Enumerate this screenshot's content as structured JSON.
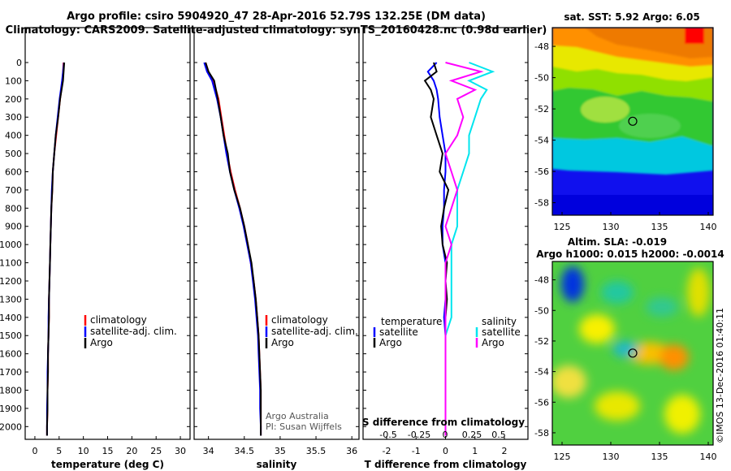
{
  "header": {
    "title_line1": "Argo profile: csiro 5904920_47 28-Apr-2016 52.79S 132.25E (DM data)",
    "title_line2": "Climatology: CARS2009. Satellite-adjusted climatology: synTS_20160428.nc (0.98d earlier)"
  },
  "colors": {
    "climatology": "#ff0000",
    "satellite": "#0000ff",
    "argo": "#000000",
    "s_satellite": "#00e5ee",
    "s_argo": "#ff00ff"
  },
  "chart_data": [
    {
      "type": "line",
      "id": "temperature",
      "xlabel": "temperature (deg C)",
      "ylabel": "",
      "xlim": [
        -2,
        32
      ],
      "ylim": [
        2070,
        0
      ],
      "xticks": [
        "0",
        "5",
        "10",
        "15",
        "20",
        "25",
        "30"
      ],
      "yticks": [
        "0",
        "100",
        "200",
        "300",
        "400",
        "500",
        "600",
        "700",
        "800",
        "900",
        "1000",
        "1100",
        "1200",
        "1300",
        "1400",
        "1500",
        "1600",
        "1700",
        "1800",
        "1900",
        "2000"
      ],
      "legend": [
        "climatology",
        "satellite-adj. clim.",
        "Argo"
      ],
      "legend_position": "lower-right",
      "depth": [
        0,
        100,
        200,
        300,
        400,
        500,
        600,
        700,
        800,
        900,
        1000,
        1100,
        1200,
        1300,
        1400,
        1500,
        1600,
        1700,
        1800,
        1900,
        2000,
        2050
      ],
      "series": [
        {
          "name": "climatology",
          "x": [
            5.9,
            5.7,
            5.2,
            4.8,
            4.4,
            4.0,
            3.7,
            3.6,
            3.4,
            3.3,
            3.2,
            3.1,
            3.0,
            2.9,
            2.9,
            2.8,
            2.7,
            2.7,
            2.6,
            2.6,
            2.5,
            2.5
          ]
        },
        {
          "name": "satellite-adj. clim.",
          "x": [
            6.0,
            5.6,
            5.1,
            4.7,
            4.3,
            4.0,
            3.7,
            3.5,
            3.4,
            3.3,
            3.2,
            3.1,
            3.0,
            2.9,
            2.8,
            2.8,
            2.7,
            2.6,
            2.6,
            2.5,
            2.5,
            2.5
          ]
        },
        {
          "name": "Argo",
          "x": [
            6.05,
            5.8,
            5.2,
            4.8,
            4.3,
            4.0,
            3.7,
            3.6,
            3.4,
            3.3,
            3.2,
            3.1,
            3.0,
            2.9,
            2.9,
            2.8,
            2.7,
            2.7,
            2.6,
            2.6,
            2.5,
            2.5
          ]
        }
      ]
    },
    {
      "type": "line",
      "id": "salinity",
      "xlabel": "salinity",
      "xlim": [
        33.8,
        36.1
      ],
      "ylim": [
        2070,
        0
      ],
      "xticks": [
        "34",
        "34.5",
        "35",
        "35.5",
        "36"
      ],
      "legend": [
        "climatology",
        "satellite-adj. clim.",
        "Argo"
      ],
      "legend_position": "lower-right",
      "annotation": [
        "Argo Australia",
        "PI: Susan Wijffels"
      ],
      "depth": [
        0,
        50,
        100,
        200,
        300,
        400,
        500,
        600,
        700,
        800,
        900,
        1000,
        1100,
        1200,
        1300,
        1400,
        1500,
        1600,
        1700,
        1800,
        1900,
        2000,
        2050
      ],
      "series": [
        {
          "name": "climatology",
          "x": [
            33.96,
            34.0,
            34.07,
            34.14,
            34.18,
            34.22,
            34.26,
            34.31,
            34.37,
            34.44,
            34.5,
            34.55,
            34.59,
            34.63,
            34.66,
            34.68,
            34.7,
            34.71,
            34.72,
            34.73,
            34.73,
            34.73,
            34.73
          ]
        },
        {
          "name": "satellite-adj. clim.",
          "x": [
            33.94,
            33.98,
            34.05,
            34.12,
            34.17,
            34.21,
            34.25,
            34.3,
            34.36,
            34.43,
            34.49,
            34.54,
            34.59,
            34.62,
            34.65,
            34.67,
            34.69,
            34.7,
            34.71,
            34.72,
            34.72,
            34.73,
            34.73
          ]
        },
        {
          "name": "Argo",
          "x": [
            33.96,
            34.0,
            34.08,
            34.13,
            34.17,
            34.21,
            34.27,
            34.3,
            34.36,
            34.44,
            34.5,
            34.55,
            34.6,
            34.63,
            34.66,
            34.68,
            34.7,
            34.71,
            34.72,
            34.73,
            34.73,
            34.73,
            34.73
          ]
        }
      ]
    },
    {
      "type": "line",
      "id": "difference",
      "xlabel": "T difference from climatology",
      "xlabel_top": "S difference from climatology",
      "xlim": [
        -2.8,
        2.8
      ],
      "ylim": [
        2070,
        0
      ],
      "xticks": [
        "-2",
        "-1",
        "0",
        "1",
        "2"
      ],
      "xticks_top": [
        "-0.5",
        "-0.25",
        "0",
        "0.25",
        "0.5"
      ],
      "legend_left": [
        "temperature",
        "satellite",
        "Argo"
      ],
      "legend_right": [
        "salinity",
        "satellite",
        "Argo"
      ],
      "depth": [
        0,
        50,
        100,
        150,
        200,
        300,
        400,
        500,
        600,
        700,
        800,
        900,
        1000,
        1100,
        1200,
        1300,
        1400,
        1500,
        1600,
        1700,
        1800,
        1900,
        2000,
        2050
      ],
      "series": [
        {
          "name": "T satellite",
          "x": [
            -0.3,
            -0.6,
            -0.4,
            -0.3,
            -0.25,
            -0.2,
            -0.1,
            0.0,
            0.0,
            -0.05,
            -0.05,
            -0.1,
            -0.1,
            0.0,
            0.0,
            0.0,
            -0.05,
            0.0,
            0.0,
            0.0,
            0.0,
            0.0,
            0.0,
            0.0
          ]
        },
        {
          "name": "T Argo",
          "x": [
            -0.4,
            -0.3,
            -0.7,
            -0.5,
            -0.4,
            -0.5,
            -0.3,
            -0.1,
            -0.2,
            0.1,
            -0.05,
            -0.15,
            -0.1,
            0.05,
            0.0,
            0.05,
            0.0,
            0.0,
            0.0,
            0.0,
            0.0,
            0.0,
            0.0,
            0.0
          ]
        },
        {
          "name": "S satellite",
          "x": [
            0.2,
            0.4,
            0.2,
            0.35,
            0.3,
            0.25,
            0.2,
            0.2,
            0.15,
            0.1,
            0.1,
            0.1,
            0.05,
            0.05,
            0.05,
            0.05,
            0.05,
            0.0,
            0.0,
            0.0,
            0.0,
            0.0,
            0.0,
            0.0
          ]
        },
        {
          "name": "S Argo",
          "x": [
            0.0,
            0.3,
            0.05,
            0.25,
            0.1,
            0.15,
            0.1,
            0.0,
            0.05,
            0.1,
            0.05,
            0.0,
            0.05,
            0.0,
            0.0,
            0.0,
            0.0,
            0.0,
            0.0,
            0.0,
            0.0,
            0.0,
            0.0,
            0.0
          ]
        }
      ]
    },
    {
      "type": "heatmap",
      "id": "sst-map",
      "title": "sat. SST: 5.92 Argo: 6.05",
      "xlim": [
        124,
        140.5
      ],
      "ylim": [
        -58.8,
        -46.8
      ],
      "xticks": [
        "125",
        "130",
        "135",
        "140"
      ],
      "yticks": [
        "-48",
        "-50",
        "-52",
        "-54",
        "-56",
        "-58"
      ],
      "marker": {
        "lon": 132.25,
        "lat": -52.79
      }
    },
    {
      "type": "heatmap",
      "id": "sla-map",
      "title": "Altim. SLA: -0.019",
      "subtitle": "Argo h1000: 0.015 h2000: -0.0014",
      "xlim": [
        124,
        140.5
      ],
      "ylim": [
        -58.8,
        -46.8
      ],
      "xticks": [
        "125",
        "130",
        "135",
        "140"
      ],
      "yticks": [
        "-48",
        "-50",
        "-52",
        "-54",
        "-56",
        "-58"
      ],
      "marker": {
        "lon": 132.25,
        "lat": -52.79
      }
    }
  ],
  "footer": {
    "stamp": "©IMOS 13-Dec-2016 01:40:11"
  }
}
